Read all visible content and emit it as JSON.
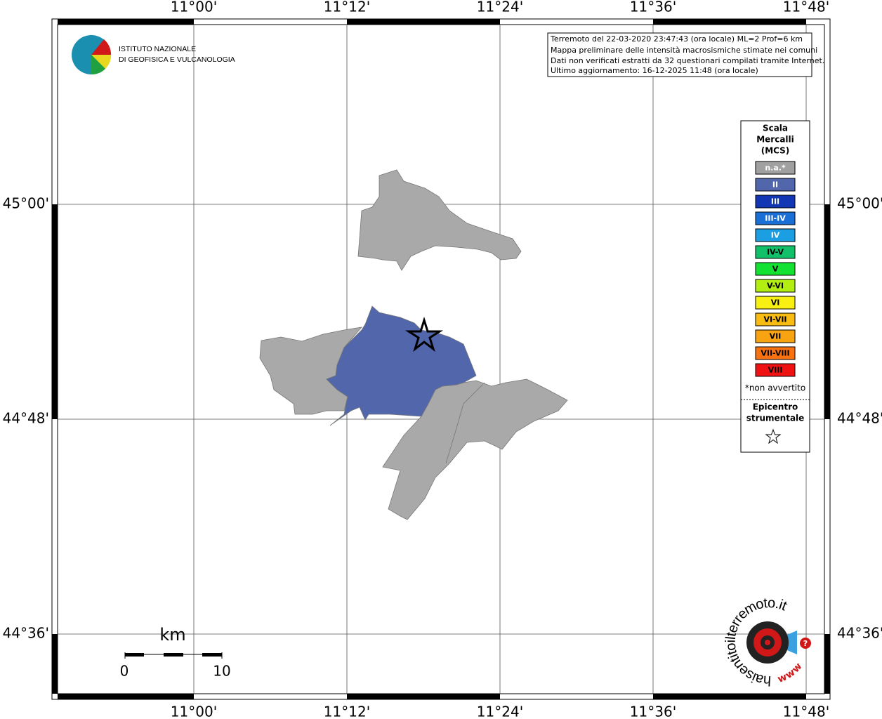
{
  "header_box": {
    "lines": [
      "Terremoto del 22-03-2020 23:47:43 (ora locale) ML=2 Prof=6 km",
      "Mappa preliminare delle intensità macrosismiche stimate nei comuni",
      "Dati non verificati estratti da 32 questionari compilati tramite Internet.",
      "Ultimo aggiornamento: 16-12-2025 11:48 (ora locale)"
    ]
  },
  "grid": {
    "lon_labels": [
      "11°00'",
      "11°12'",
      "11°24'",
      "11°36'",
      "11°48'"
    ],
    "lat_labels": [
      "45°00'",
      "44°48'",
      "44°36'"
    ]
  },
  "logo": {
    "lines": [
      "ISTITUTO NAZIONALE",
      "DI GEOFISICA E VULCANOLOGIA"
    ]
  },
  "site_logo": {
    "text": "haisentitoilterremoto.it",
    "prefix": "www.",
    "badge": "?"
  },
  "legend": {
    "title": [
      "Scala",
      "Mercalli",
      "(MCS)"
    ],
    "items": [
      {
        "label": "n.a.*",
        "color": "#a0a0a0",
        "text_color": "#ffffff"
      },
      {
        "label": "II",
        "color": "#5166ab",
        "text_color": "#ffffff"
      },
      {
        "label": "III",
        "color": "#1236b4",
        "text_color": "#ffffff"
      },
      {
        "label": "III-IV",
        "color": "#1a6fd6",
        "text_color": "#ffffff"
      },
      {
        "label": "IV",
        "color": "#1c9ee2",
        "text_color": "#ffffff"
      },
      {
        "label": "IV-V",
        "color": "#12c06a",
        "text_color": "#000000"
      },
      {
        "label": "V",
        "color": "#14e232",
        "text_color": "#000000"
      },
      {
        "label": "V-VI",
        "color": "#b2ee12",
        "text_color": "#000000"
      },
      {
        "label": "VI",
        "color": "#f8f012",
        "text_color": "#000000"
      },
      {
        "label": "VI-VII",
        "color": "#f8bc12",
        "text_color": "#000000"
      },
      {
        "label": "VII",
        "color": "#f8a412",
        "text_color": "#000000"
      },
      {
        "label": "VII-VIII",
        "color": "#f87212",
        "text_color": "#000000"
      },
      {
        "label": "VIII",
        "color": "#f01212",
        "text_color": "#000000"
      }
    ],
    "note": "*non avvertito",
    "epicenter_title": [
      "Epicentro",
      "strumentale"
    ]
  },
  "scale_bar": {
    "unit": "km",
    "labels": [
      "0",
      "10"
    ]
  }
}
